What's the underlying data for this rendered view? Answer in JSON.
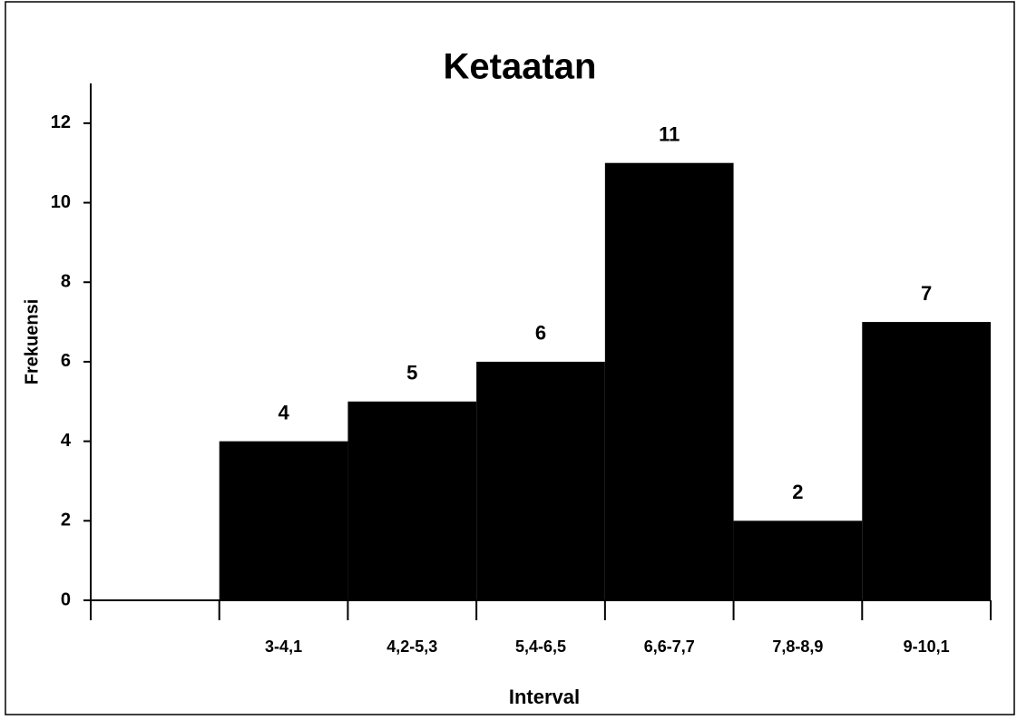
{
  "chart_data": {
    "type": "bar",
    "title": "Ketaatan",
    "x_label": "Interval",
    "y_label": "Frekuensi",
    "categories": [
      null,
      "3-4,1",
      "4,2-5,3",
      "5,4-6,5",
      "6,6-7,7",
      "7,8-8,9",
      "9-10,1"
    ],
    "values": [
      null,
      4,
      5,
      6,
      11,
      2,
      7
    ],
    "color": "#000000",
    "ylim": [
      0,
      13
    ],
    "yticks": [
      0,
      2,
      4,
      6,
      8,
      10,
      12
    ],
    "grid": false
  }
}
